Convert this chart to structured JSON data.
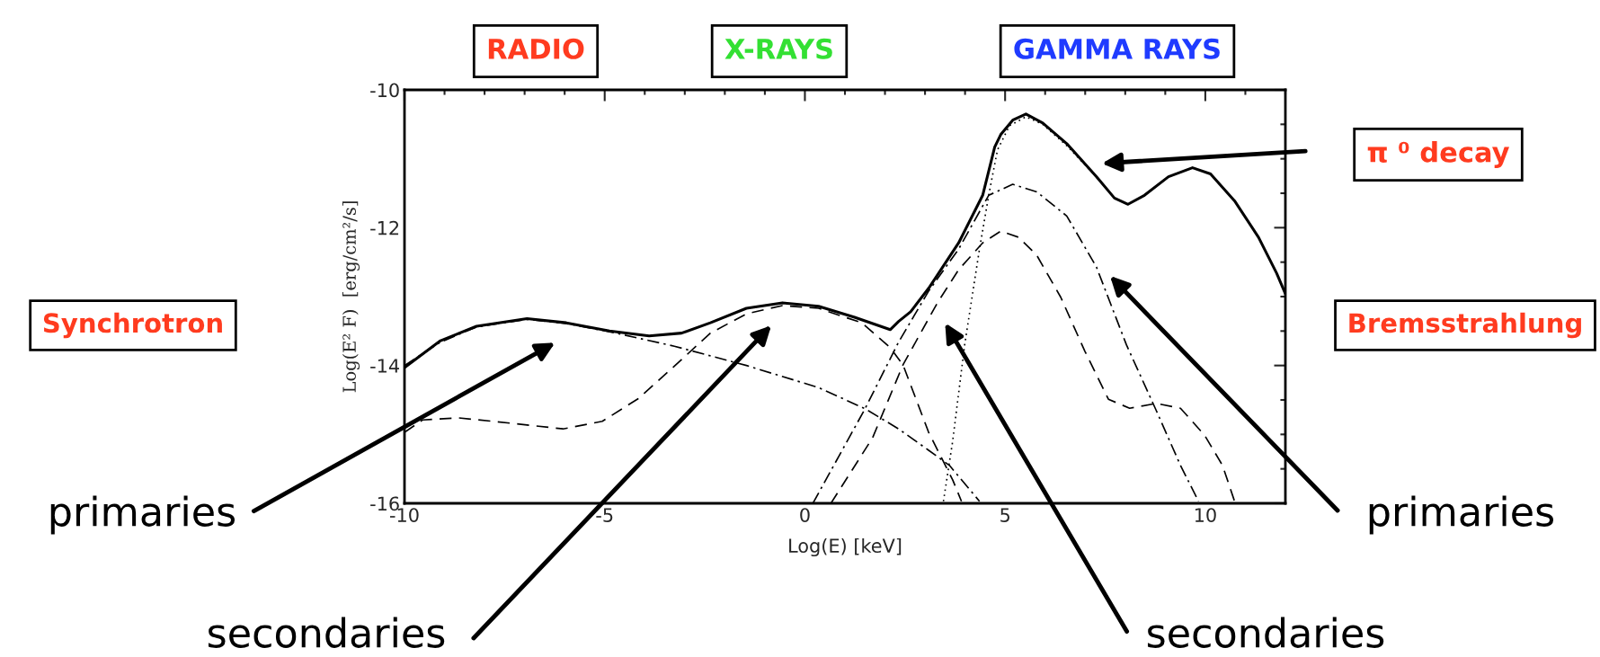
{
  "chart_data": {
    "type": "line",
    "xlabel": "Log(E) [keV]",
    "ylabel": "Log(E² F)  [erg/cm²/s]",
    "xlim": [
      -10,
      12
    ],
    "ylim": [
      -16,
      -10
    ],
    "xticks": [
      {
        "value": -10,
        "label": "-10"
      },
      {
        "value": -9,
        "label": null
      },
      {
        "value": -8,
        "label": null
      },
      {
        "value": -7,
        "label": null
      },
      {
        "value": -6,
        "label": null
      },
      {
        "value": -5,
        "label": "-5"
      },
      {
        "value": -4,
        "label": null
      },
      {
        "value": -3,
        "label": null
      },
      {
        "value": -2,
        "label": null
      },
      {
        "value": -1,
        "label": null
      },
      {
        "value": 0,
        "label": "0"
      },
      {
        "value": 1,
        "label": null
      },
      {
        "value": 2,
        "label": null
      },
      {
        "value": 3,
        "label": null
      },
      {
        "value": 4,
        "label": null
      },
      {
        "value": 5,
        "label": "5"
      },
      {
        "value": 6,
        "label": null
      },
      {
        "value": 7,
        "label": null
      },
      {
        "value": 8,
        "label": null
      },
      {
        "value": 9,
        "label": null
      },
      {
        "value": 10,
        "label": "10"
      },
      {
        "value": 11,
        "label": null
      },
      {
        "value": 12,
        "label": null
      }
    ],
    "yticks": [
      {
        "value": -16,
        "label": "-16"
      },
      {
        "value": -15.5,
        "label": null
      },
      {
        "value": -15,
        "label": null
      },
      {
        "value": -14.5,
        "label": null
      },
      {
        "value": -14,
        "label": "-14"
      },
      {
        "value": -13.5,
        "label": null
      },
      {
        "value": -13,
        "label": null
      },
      {
        "value": -12.5,
        "label": null
      },
      {
        "value": -12,
        "label": "-12"
      },
      {
        "value": -11.5,
        "label": null
      },
      {
        "value": -11,
        "label": null
      },
      {
        "value": -10.5,
        "label": null
      },
      {
        "value": -10,
        "label": "-10"
      }
    ],
    "grid": false,
    "series": [
      {
        "color": "#000000",
        "line_style": "solid",
        "x": [
          -10,
          -9.1,
          -8.2,
          -6.94,
          -5.96,
          -4.88,
          -3.89,
          -3.08,
          -2.36,
          -1.46,
          -0.56,
          0.34,
          1.24,
          2.13,
          2.34,
          2.64,
          3.09,
          3.84,
          4.44,
          4.74,
          4.89,
          5.19,
          5.52,
          5.94,
          6.54,
          7.28,
          7.73,
          8.07,
          8.48,
          9.08,
          9.68,
          10.13,
          10.73,
          11.33,
          11.78,
          12.0
        ],
        "values": [
          -14.03,
          -13.64,
          -13.43,
          -13.32,
          -13.38,
          -13.5,
          -13.57,
          -13.53,
          -13.38,
          -13.17,
          -13.09,
          -13.14,
          -13.3,
          -13.48,
          -13.36,
          -13.22,
          -12.88,
          -12.22,
          -11.53,
          -10.83,
          -10.65,
          -10.44,
          -10.35,
          -10.48,
          -10.78,
          -11.26,
          -11.57,
          -11.66,
          -11.53,
          -11.26,
          -11.13,
          -11.22,
          -11.61,
          -12.14,
          -12.66,
          -12.96
        ]
      },
      {
        "color": "#000000",
        "line_style": "dashdot",
        "x": [
          -10,
          -9.1,
          -8.2,
          -6.94,
          -5.96,
          -4.88,
          -3.26,
          -1.46,
          0.34,
          1.51,
          2.34,
          3.09,
          3.61,
          4.36
        ],
        "values": [
          -14.0,
          -13.66,
          -13.44,
          -13.33,
          -13.39,
          -13.51,
          -13.72,
          -14.0,
          -14.32,
          -14.63,
          -14.92,
          -15.23,
          -15.45,
          -15.97
        ]
      },
      {
        "color": "#000000",
        "line_style": "dashed",
        "x": [
          -10,
          -9.55,
          -8.65,
          -7.3,
          -6.04,
          -5.06,
          -4.16,
          -3.26,
          -2.36,
          -1.46,
          -0.56,
          0.34,
          1.42,
          2.13,
          2.45,
          3.09,
          3.69,
          3.91
        ],
        "values": [
          -14.97,
          -14.79,
          -14.76,
          -14.84,
          -14.92,
          -14.81,
          -14.48,
          -14.01,
          -13.53,
          -13.25,
          -13.13,
          -13.17,
          -13.38,
          -13.74,
          -13.99,
          -14.97,
          -15.66,
          -15.97
        ]
      },
      {
        "color": "#000000",
        "line_style": "dashdot",
        "x": [
          0.2,
          1.5,
          2.34,
          3.09,
          3.84,
          4.59,
          5.19,
          5.79,
          6.54,
          7.28,
          8.03,
          8.78,
          9.38,
          9.83
        ],
        "values": [
          -16.0,
          -14.63,
          -13.66,
          -12.92,
          -12.31,
          -11.53,
          -11.37,
          -11.48,
          -11.83,
          -12.57,
          -13.7,
          -14.66,
          -15.45,
          -15.97
        ]
      },
      {
        "color": "#000000",
        "line_style": "dashed",
        "x": [
          0.65,
          1.69,
          2.45,
          3.31,
          3.84,
          4.44,
          4.89,
          5.34,
          5.79,
          6.39,
          6.99,
          7.58,
          8.11,
          8.78,
          9.38,
          9.98,
          10.43,
          10.73
        ],
        "values": [
          -16.0,
          -15.05,
          -13.99,
          -13.09,
          -12.61,
          -12.22,
          -12.05,
          -12.14,
          -12.4,
          -13.01,
          -13.79,
          -14.49,
          -14.62,
          -14.55,
          -14.62,
          -15.01,
          -15.45,
          -15.97
        ]
      },
      {
        "color": "#000000",
        "line_style": "dotted",
        "x": [
          3.46,
          3.69,
          3.99,
          4.36,
          4.59,
          4.81,
          5.11,
          5.52,
          5.94,
          6.54,
          7.28
        ],
        "values": [
          -15.97,
          -15.1,
          -13.7,
          -12.31,
          -11.53,
          -10.87,
          -10.52,
          -10.39,
          -10.5,
          -10.81,
          -11.26
        ]
      }
    ],
    "annotations": [
      "RADIO",
      "X-RAYS",
      "GAMMA RAYS",
      "Synchrotron",
      "Bremsstrahlung",
      "π ⁰ decay",
      "primaries",
      "secondaries",
      "secondaries",
      "primaries"
    ]
  }
}
